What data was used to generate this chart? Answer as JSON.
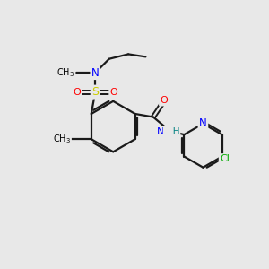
{
  "background_color": "#e8e8e8",
  "atom_colors": {
    "C": "#000000",
    "N": "#0000ff",
    "O": "#ff0000",
    "S": "#cccc00",
    "Cl": "#00aa00",
    "H": "#008080"
  },
  "bond_color": "#1a1a1a",
  "bond_width": 1.6,
  "fig_width": 3.0,
  "fig_height": 3.0,
  "dpi": 100,
  "xlim": [
    0,
    10
  ],
  "ylim": [
    0,
    10
  ]
}
